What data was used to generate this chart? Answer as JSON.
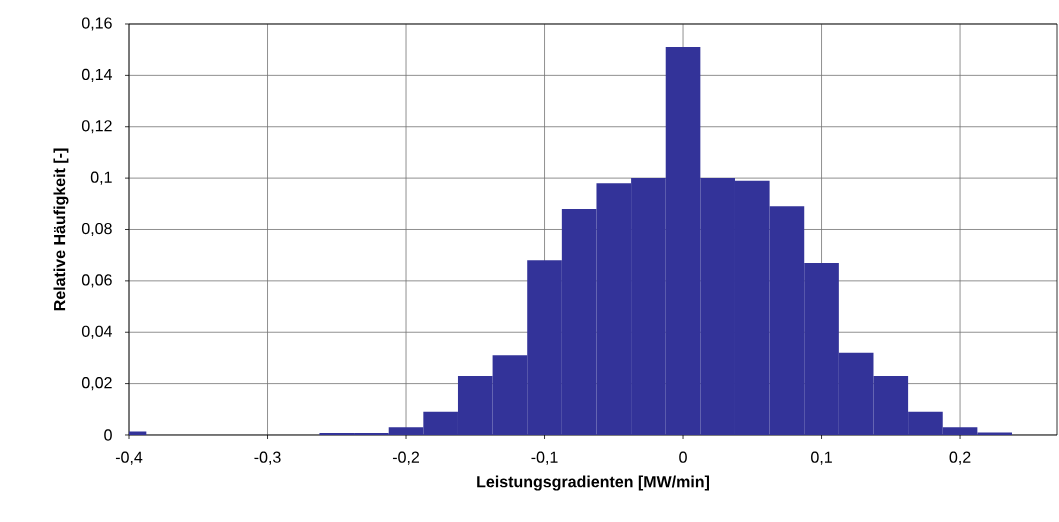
{
  "chart_data": {
    "type": "histogram",
    "xlabel": "Leistungsgradienten [MW/min]",
    "ylabel": "Relative Häufigkeit [-]",
    "bins": [
      -0.4125,
      -0.3875,
      -0.3625,
      -0.3375,
      -0.3125,
      -0.2875,
      -0.2625,
      -0.2375,
      -0.2125,
      -0.1875,
      -0.1625,
      -0.1375,
      -0.1125,
      -0.0875,
      -0.0625,
      -0.0375,
      -0.0125,
      0.0125,
      0.0375,
      0.0625,
      0.0875,
      0.1125,
      0.1375,
      0.1625,
      0.1875,
      0.2125,
      0.2375
    ],
    "values": [
      0.0014,
      0,
      0,
      0,
      0,
      0,
      0.0008,
      0.0008,
      0.003,
      0.009,
      0.023,
      0.031,
      0.068,
      0.088,
      0.098,
      0.1,
      0.151,
      0.1,
      0.099,
      0.089,
      0.067,
      0.032,
      0.023,
      0.009,
      0.003,
      0.001
    ],
    "color": "#333399",
    "xlim": [
      -0.4,
      0.27
    ],
    "xticks": [
      {
        "value": -0.4,
        "label": "-0,4"
      },
      {
        "value": -0.3,
        "label": "-0,3"
      },
      {
        "value": -0.2,
        "label": "-0,2"
      },
      {
        "value": -0.1,
        "label": "-0,1"
      },
      {
        "value": 0,
        "label": "0"
      },
      {
        "value": 0.1,
        "label": "0,1"
      },
      {
        "value": 0.2,
        "label": "0,2"
      }
    ],
    "ylim": [
      0,
      0.16
    ],
    "yticks": [
      {
        "value": 0,
        "label": "0"
      },
      {
        "value": 0.02,
        "label": "0,02"
      },
      {
        "value": 0.04,
        "label": "0,04"
      },
      {
        "value": 0.06,
        "label": "0,06"
      },
      {
        "value": 0.08,
        "label": "0,08"
      },
      {
        "value": 0.1,
        "label": "0,1"
      },
      {
        "value": 0.12,
        "label": "0,12"
      },
      {
        "value": 0.14,
        "label": "0,14"
      },
      {
        "value": 0.16,
        "label": "0,16"
      }
    ],
    "grid": true
  }
}
